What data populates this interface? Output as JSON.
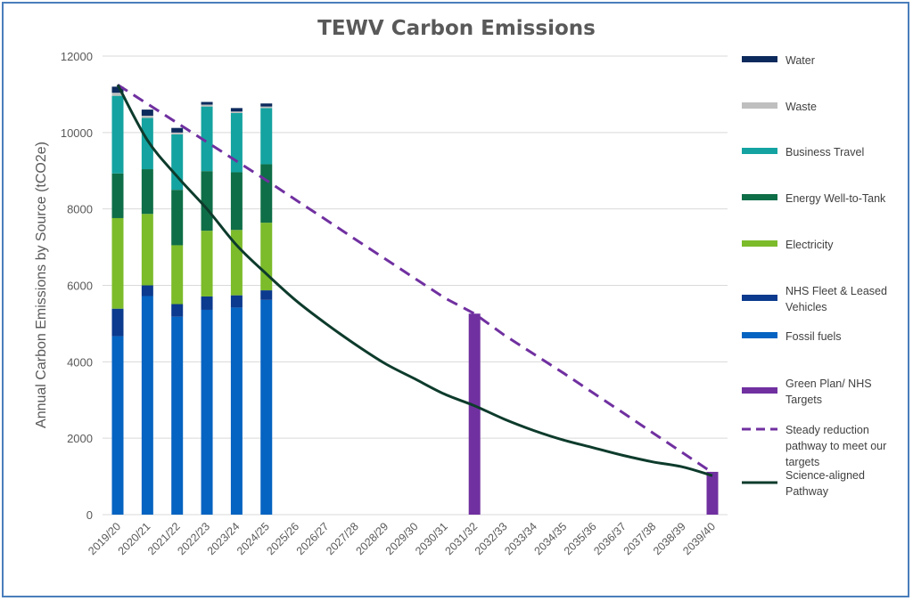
{
  "chart_data": {
    "type": "bar",
    "title": "TEWV Carbon Emissions",
    "ylabel": "Annual Carbon Emissions by Source (tCO2e)",
    "xlabel": "",
    "ylim": [
      0,
      12000
    ],
    "yticks": [
      0,
      2000,
      4000,
      6000,
      8000,
      10000,
      12000
    ],
    "grid": "horizontal",
    "legend_placement": "right",
    "categories": [
      "2019/20",
      "2020/21",
      "2021/22",
      "2022/23",
      "2023/24",
      "2024/25",
      "2025/26",
      "2026/27",
      "2027/28",
      "2028/29",
      "2029/30",
      "2030/31",
      "2031/32",
      "2032/33",
      "2033/34",
      "2034/35",
      "2035/36",
      "2036/37",
      "2037/38",
      "2038/39",
      "2039/40"
    ],
    "stacked_series": [
      {
        "name": "Fossil fuels",
        "color": "#0563c1",
        "values": [
          4670,
          5720,
          5180,
          5360,
          5420,
          5620,
          null,
          null,
          null,
          null,
          null,
          null,
          null,
          null,
          null,
          null,
          null,
          null,
          null,
          null,
          null
        ]
      },
      {
        "name": "NHS Fleet & Leased Vehicles",
        "color": "#0b3a8e",
        "values": [
          720,
          280,
          330,
          350,
          320,
          250,
          null,
          null,
          null,
          null,
          null,
          null,
          null,
          null,
          null,
          null,
          null,
          null,
          null,
          null,
          null
        ]
      },
      {
        "name": "Electricity",
        "color": "#7cbb2a",
        "values": [
          2370,
          1870,
          1540,
          1720,
          1710,
          1770,
          null,
          null,
          null,
          null,
          null,
          null,
          null,
          null,
          null,
          null,
          null,
          null,
          null,
          null,
          null
        ]
      },
      {
        "name": "Energy Well-to-Tank",
        "color": "#0e6e47",
        "values": [
          1170,
          1170,
          1450,
          1560,
          1510,
          1530,
          null,
          null,
          null,
          null,
          null,
          null,
          null,
          null,
          null,
          null,
          null,
          null,
          null,
          null,
          null
        ]
      },
      {
        "name": "Business Travel",
        "color": "#14a3a0",
        "values": [
          2030,
          1340,
          1450,
          1690,
          1550,
          1470,
          null,
          null,
          null,
          null,
          null,
          null,
          null,
          null,
          null,
          null,
          null,
          null,
          null,
          null,
          null
        ]
      },
      {
        "name": "Waste",
        "color": "#bfbfbf",
        "values": [
          80,
          60,
          50,
          50,
          40,
          40,
          null,
          null,
          null,
          null,
          null,
          null,
          null,
          null,
          null,
          null,
          null,
          null,
          null,
          null,
          null
        ]
      },
      {
        "name": "Water",
        "color": "#0d2a5c",
        "values": [
          160,
          160,
          120,
          70,
          90,
          80,
          null,
          null,
          null,
          null,
          null,
          null,
          null,
          null,
          null,
          null,
          null,
          null,
          null,
          null,
          null
        ]
      }
    ],
    "target_series": {
      "name": "Green Plan/ NHS Targets",
      "color": "#7030a0",
      "values": [
        null,
        null,
        null,
        null,
        null,
        null,
        null,
        null,
        null,
        null,
        null,
        null,
        5260,
        null,
        null,
        null,
        null,
        null,
        null,
        null,
        1120
      ]
    },
    "line_series": [
      {
        "name": "Steady reduction pathway to meet our targets",
        "color": "#7030a0",
        "style": "dashed",
        "values": [
          11250,
          10750,
          10250,
          9750,
          9250,
          8750,
          8230,
          7720,
          7200,
          6690,
          6180,
          5670,
          5260,
          4700,
          4200,
          3700,
          3180,
          2660,
          2140,
          1620,
          1100
        ]
      },
      {
        "name": "Science-aligned Pathway",
        "color": "#0d3b2c",
        "style": "solid",
        "values": [
          11250,
          9800,
          8850,
          8000,
          7050,
          6300,
          5600,
          5000,
          4450,
          3950,
          3550,
          3150,
          2850,
          2500,
          2200,
          1950,
          1750,
          1550,
          1380,
          1250,
          1020
        ]
      }
    ],
    "legend": [
      {
        "name": "Water",
        "kind": "box",
        "color": "#0d2a5c"
      },
      {
        "name": "Waste",
        "kind": "box",
        "color": "#bfbfbf"
      },
      {
        "name": "Business Travel",
        "kind": "box",
        "color": "#14a3a0"
      },
      {
        "name": "Energy Well-to-Tank",
        "kind": "box",
        "color": "#0e6e47"
      },
      {
        "name": "Electricity",
        "kind": "box",
        "color": "#7cbb2a"
      },
      {
        "name": "NHS Fleet & Leased Vehicles",
        "kind": "box",
        "color": "#0b3a8e"
      },
      {
        "name": "Fossil fuels",
        "kind": "box",
        "color": "#0563c1"
      },
      {
        "name": "Green Plan/ NHS Targets",
        "kind": "box",
        "color": "#7030a0"
      },
      {
        "name": "Steady reduction pathway to meet our targets",
        "kind": "dash",
        "color": "#7030a0"
      },
      {
        "name": "Science-aligned Pathway",
        "kind": "line",
        "color": "#0d3b2c"
      }
    ]
  }
}
